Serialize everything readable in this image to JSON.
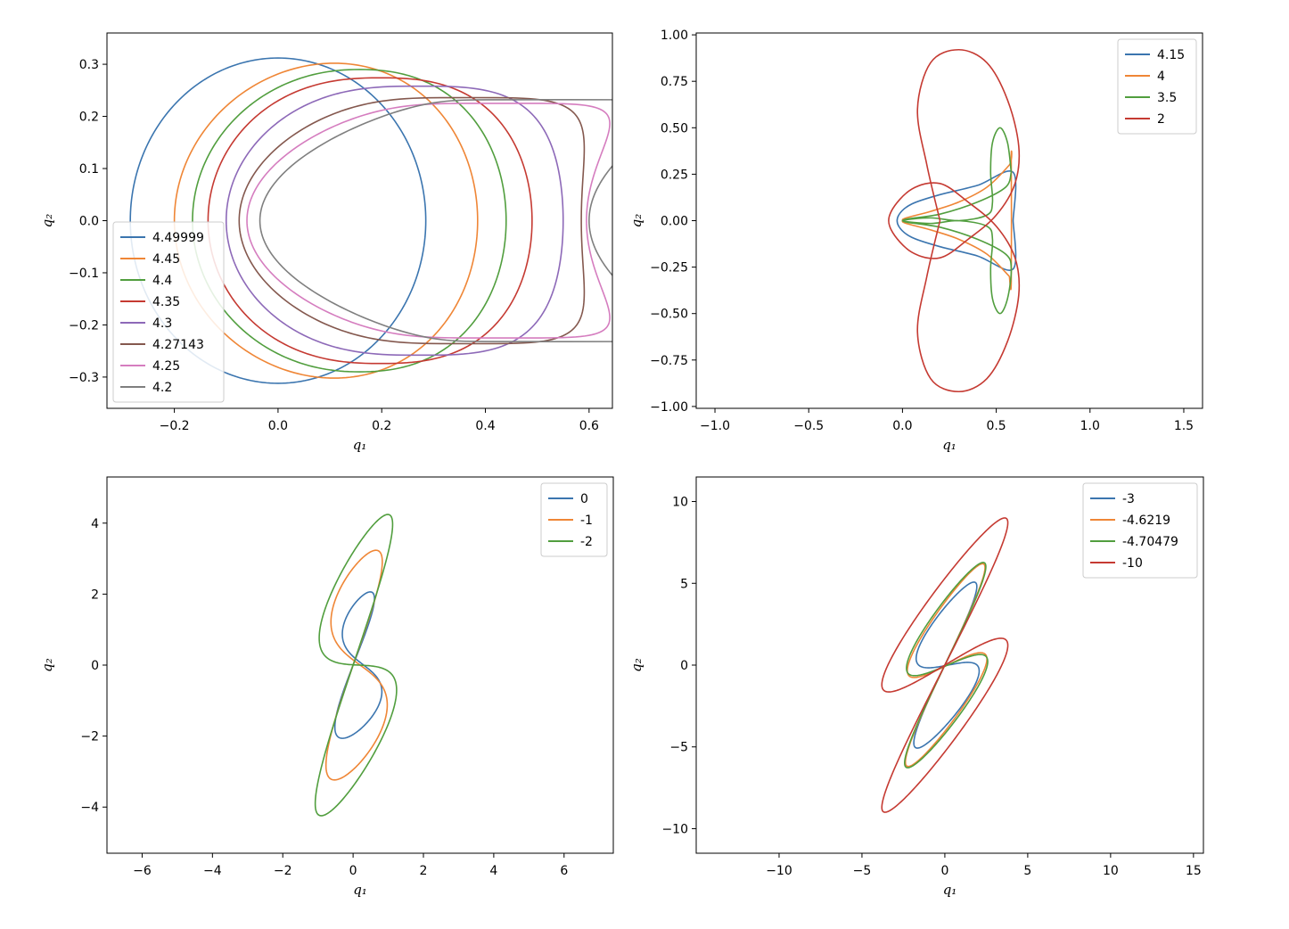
{
  "colors": {
    "blue": "#3b75af",
    "orange": "#ef8636",
    "green": "#519e3e",
    "red": "#c53a32",
    "purple": "#8d69b8",
    "brown": "#84584e",
    "pink": "#d57dbf",
    "gray": "#7f7f7f"
  },
  "chart_data": [
    {
      "type": "line",
      "xlabel": "q₁",
      "ylabel": "q₂",
      "xlim": [
        -0.33,
        0.645
      ],
      "ylim": [
        -0.36,
        0.36
      ],
      "xticks": [
        -0.2,
        0.0,
        0.2,
        0.4,
        0.6
      ],
      "xtick_labels": [
        "−0.2",
        "0.0",
        "0.2",
        "0.4",
        "0.6"
      ],
      "yticks": [
        -0.3,
        -0.2,
        -0.1,
        0.0,
        0.1,
        0.2,
        0.3
      ],
      "ytick_labels": [
        "−0.3",
        "−0.2",
        "−0.1",
        "0.0",
        "0.1",
        "0.2",
        "0.3"
      ],
      "legend_position": "lower-left",
      "series": [
        {
          "name": "4.49999",
          "color": "blue",
          "shape": "lobe",
          "x_left": -0.285,
          "x_right": 0.285,
          "y_max": 0.312,
          "x_peak": 0.0,
          "p": 2
        },
        {
          "name": "4.45",
          "color": "orange",
          "shape": "lobe",
          "x_left": -0.2,
          "x_right": 0.385,
          "y_max": 0.302,
          "x_peak": 0.11,
          "p": 2
        },
        {
          "name": "4.4",
          "color": "green",
          "shape": "lobe",
          "x_left": -0.165,
          "x_right": 0.44,
          "y_max": 0.29,
          "x_peak": 0.16,
          "p": 2.2
        },
        {
          "name": "4.35",
          "color": "red",
          "shape": "lobe",
          "x_left": -0.135,
          "x_right": 0.49,
          "y_max": 0.274,
          "x_peak": 0.2,
          "p": 2.5
        },
        {
          "name": "4.3",
          "color": "purple",
          "shape": "lobe",
          "x_left": -0.1,
          "x_right": 0.55,
          "y_max": 0.258,
          "x_peak": 0.28,
          "p": 3
        },
        {
          "name": "4.27143",
          "color": "brown",
          "shape": "lobe",
          "x_left": -0.075,
          "x_right": 0.585,
          "y_max": 0.236,
          "x_peak": 0.38,
          "p": 4
        },
        {
          "name": "4.25",
          "color": "pink",
          "shape": "lobe",
          "x_left": -0.06,
          "x_right": 0.595,
          "y_max": 0.225,
          "x_peak": 0.45,
          "p": 5
        },
        {
          "name": "4.2",
          "color": "gray",
          "shape": "lobe",
          "x_left": -0.035,
          "x_right": 0.6,
          "y_max": 0.232,
          "x_peak": 0.57,
          "p": 9
        }
      ]
    },
    {
      "type": "line",
      "xlabel": "q₁",
      "ylabel": "q₂",
      "xlim": [
        -1.1,
        1.6
      ],
      "ylim": [
        -1.01,
        1.01
      ],
      "xticks": [
        -1.0,
        -0.5,
        0.0,
        0.5,
        1.0,
        1.5
      ],
      "xtick_labels": [
        "−1.0",
        "−0.5",
        "0.0",
        "0.5",
        "1.0",
        "1.5"
      ],
      "yticks": [
        -1.0,
        -0.75,
        -0.5,
        -0.25,
        0.0,
        0.25,
        0.5,
        0.75,
        1.0
      ],
      "ytick_labels": [
        "−1.00",
        "−0.75",
        "−0.50",
        "−0.25",
        "0.00",
        "0.25",
        "0.50",
        "0.75",
        "1.00"
      ],
      "legend_position": "upper-right",
      "series": [
        {
          "name": "4.15",
          "color": "blue",
          "points": [
            [
              0.59,
              0
            ],
            [
              0.59,
              0.26
            ],
            [
              0.4,
              0.19
            ],
            [
              0.2,
              0.14
            ],
            [
              0.05,
              0.09
            ],
            [
              -0.02,
              0.03
            ],
            [
              -0.02,
              -0.03
            ],
            [
              0.05,
              -0.09
            ],
            [
              0.2,
              -0.14
            ],
            [
              0.4,
              -0.19
            ],
            [
              0.59,
              -0.26
            ],
            [
              0.59,
              0
            ]
          ]
        },
        {
          "name": "4",
          "color": "orange",
          "points": [
            [
              0.57,
              -0.3
            ],
            [
              0.58,
              -0.33
            ],
            [
              0.58,
              0.33
            ],
            [
              0.57,
              0.3
            ],
            [
              0.45,
              0.18
            ],
            [
              0.3,
              0.1
            ],
            [
              0.15,
              0.05
            ],
            [
              0.02,
              0.015
            ],
            [
              0.0,
              0.0
            ],
            [
              0.02,
              -0.015
            ],
            [
              0.15,
              -0.05
            ],
            [
              0.3,
              -0.1
            ],
            [
              0.45,
              -0.18
            ],
            [
              0.57,
              -0.3
            ]
          ]
        },
        {
          "name": "3.5",
          "color": "green",
          "points": [
            [
              0.58,
              0.26
            ],
            [
              0.56,
              0.42
            ],
            [
              0.52,
              0.5
            ],
            [
              0.48,
              0.42
            ],
            [
              0.47,
              0.26
            ],
            [
              0.48,
              0.1
            ],
            [
              0.45,
              0.03
            ],
            [
              0.3,
              0.0
            ],
            [
              0.15,
              0.015
            ],
            [
              0.0,
              0.0
            ],
            [
              0.15,
              -0.015
            ],
            [
              0.3,
              0.0
            ],
            [
              0.45,
              -0.03
            ],
            [
              0.48,
              -0.1
            ],
            [
              0.47,
              -0.26
            ],
            [
              0.48,
              -0.42
            ],
            [
              0.52,
              -0.5
            ],
            [
              0.56,
              -0.42
            ],
            [
              0.58,
              -0.26
            ],
            [
              0.55,
              -0.18
            ],
            [
              0.4,
              -0.1
            ],
            [
              0.2,
              -0.035
            ],
            [
              0.0,
              0.0
            ],
            [
              0.2,
              0.035
            ],
            [
              0.4,
              0.1
            ],
            [
              0.55,
              0.18
            ],
            [
              0.58,
              0.26
            ]
          ]
        },
        {
          "name": "2",
          "color": "red",
          "points": [
            [
              0.2,
              0.0
            ],
            [
              0.13,
              0.3
            ],
            [
              0.08,
              0.6
            ],
            [
              0.15,
              0.85
            ],
            [
              0.3,
              0.92
            ],
            [
              0.45,
              0.85
            ],
            [
              0.56,
              0.65
            ],
            [
              0.62,
              0.4
            ],
            [
              0.6,
              0.2
            ],
            [
              0.5,
              0.03
            ],
            [
              0.35,
              -0.1
            ],
            [
              0.2,
              -0.2
            ],
            [
              0.05,
              -0.17
            ],
            [
              -0.06,
              -0.05
            ],
            [
              -0.06,
              0.05
            ],
            [
              0.05,
              0.17
            ],
            [
              0.2,
              0.2
            ],
            [
              0.35,
              0.1
            ],
            [
              0.5,
              -0.03
            ],
            [
              0.6,
              -0.2
            ],
            [
              0.62,
              -0.4
            ],
            [
              0.56,
              -0.65
            ],
            [
              0.45,
              -0.85
            ],
            [
              0.3,
              -0.92
            ],
            [
              0.15,
              -0.85
            ],
            [
              0.08,
              -0.6
            ],
            [
              0.13,
              -0.3
            ],
            [
              0.2,
              0.0
            ]
          ]
        }
      ]
    },
    {
      "type": "line",
      "xlabel": "q₁",
      "ylabel": "q₂",
      "xlim": [
        -7.0,
        7.4
      ],
      "ylim": [
        -5.3,
        5.3
      ],
      "xticks": [
        -6,
        -4,
        -2,
        0,
        2,
        4,
        6
      ],
      "xtick_labels": [
        "−6",
        "−4",
        "−2",
        "0",
        "2",
        "4",
        "6"
      ],
      "yticks": [
        -4,
        -2,
        0,
        2,
        4
      ],
      "ytick_labels": [
        "−4",
        "−2",
        "0",
        "2",
        "4"
      ],
      "legend_position": "upper-right",
      "series": [
        {
          "name": "0",
          "color": "blue",
          "shape": "cardioid",
          "a": 1.85,
          "b": 0.5,
          "xs": 0.56,
          "xc": 0.15
        },
        {
          "name": "-1",
          "color": "orange",
          "shape": "cardioid",
          "a": 2.85,
          "b": 0.85,
          "xs": 0.8,
          "xc": 0.1
        },
        {
          "name": "-2",
          "color": "green",
          "shape": "cardioid",
          "a": 3.3,
          "b": 1.6,
          "xs": 1.1,
          "xc": 0.08
        }
      ]
    },
    {
      "type": "line",
      "xlabel": "q₁",
      "ylabel": "q₂",
      "xlim": [
        -15.0,
        15.6
      ],
      "ylim": [
        -11.5,
        11.5
      ],
      "xticks": [
        -10,
        -5,
        0,
        5,
        10,
        15
      ],
      "xtick_labels": [
        "−10",
        "−5",
        "0",
        "5",
        "10",
        "15"
      ],
      "yticks": [
        -10,
        -5,
        0,
        5,
        10
      ],
      "ytick_labels": [
        "−10",
        "−5",
        "0",
        "5",
        "10"
      ],
      "legend_position": "upper-right",
      "series": [
        {
          "name": "-3",
          "color": "blue",
          "shape": "cardioid",
          "a": 3.65,
          "b": 2.2,
          "xs": 1.9,
          "xc": 0.1
        },
        {
          "name": "-4.6219",
          "color": "orange",
          "shape": "cardioid",
          "a": 3.95,
          "b": 3.15,
          "xs": 2.4,
          "xc": 0.08
        },
        {
          "name": "-4.70479",
          "color": "green",
          "shape": "cardioid",
          "a": 4.1,
          "b": 3.1,
          "xs": 2.45,
          "xc": 0.08
        },
        {
          "name": "-10",
          "color": "red",
          "shape": "cardioid",
          "a": 5.3,
          "b": 4.95,
          "xs": 3.8,
          "xc": 0.0
        }
      ]
    }
  ]
}
